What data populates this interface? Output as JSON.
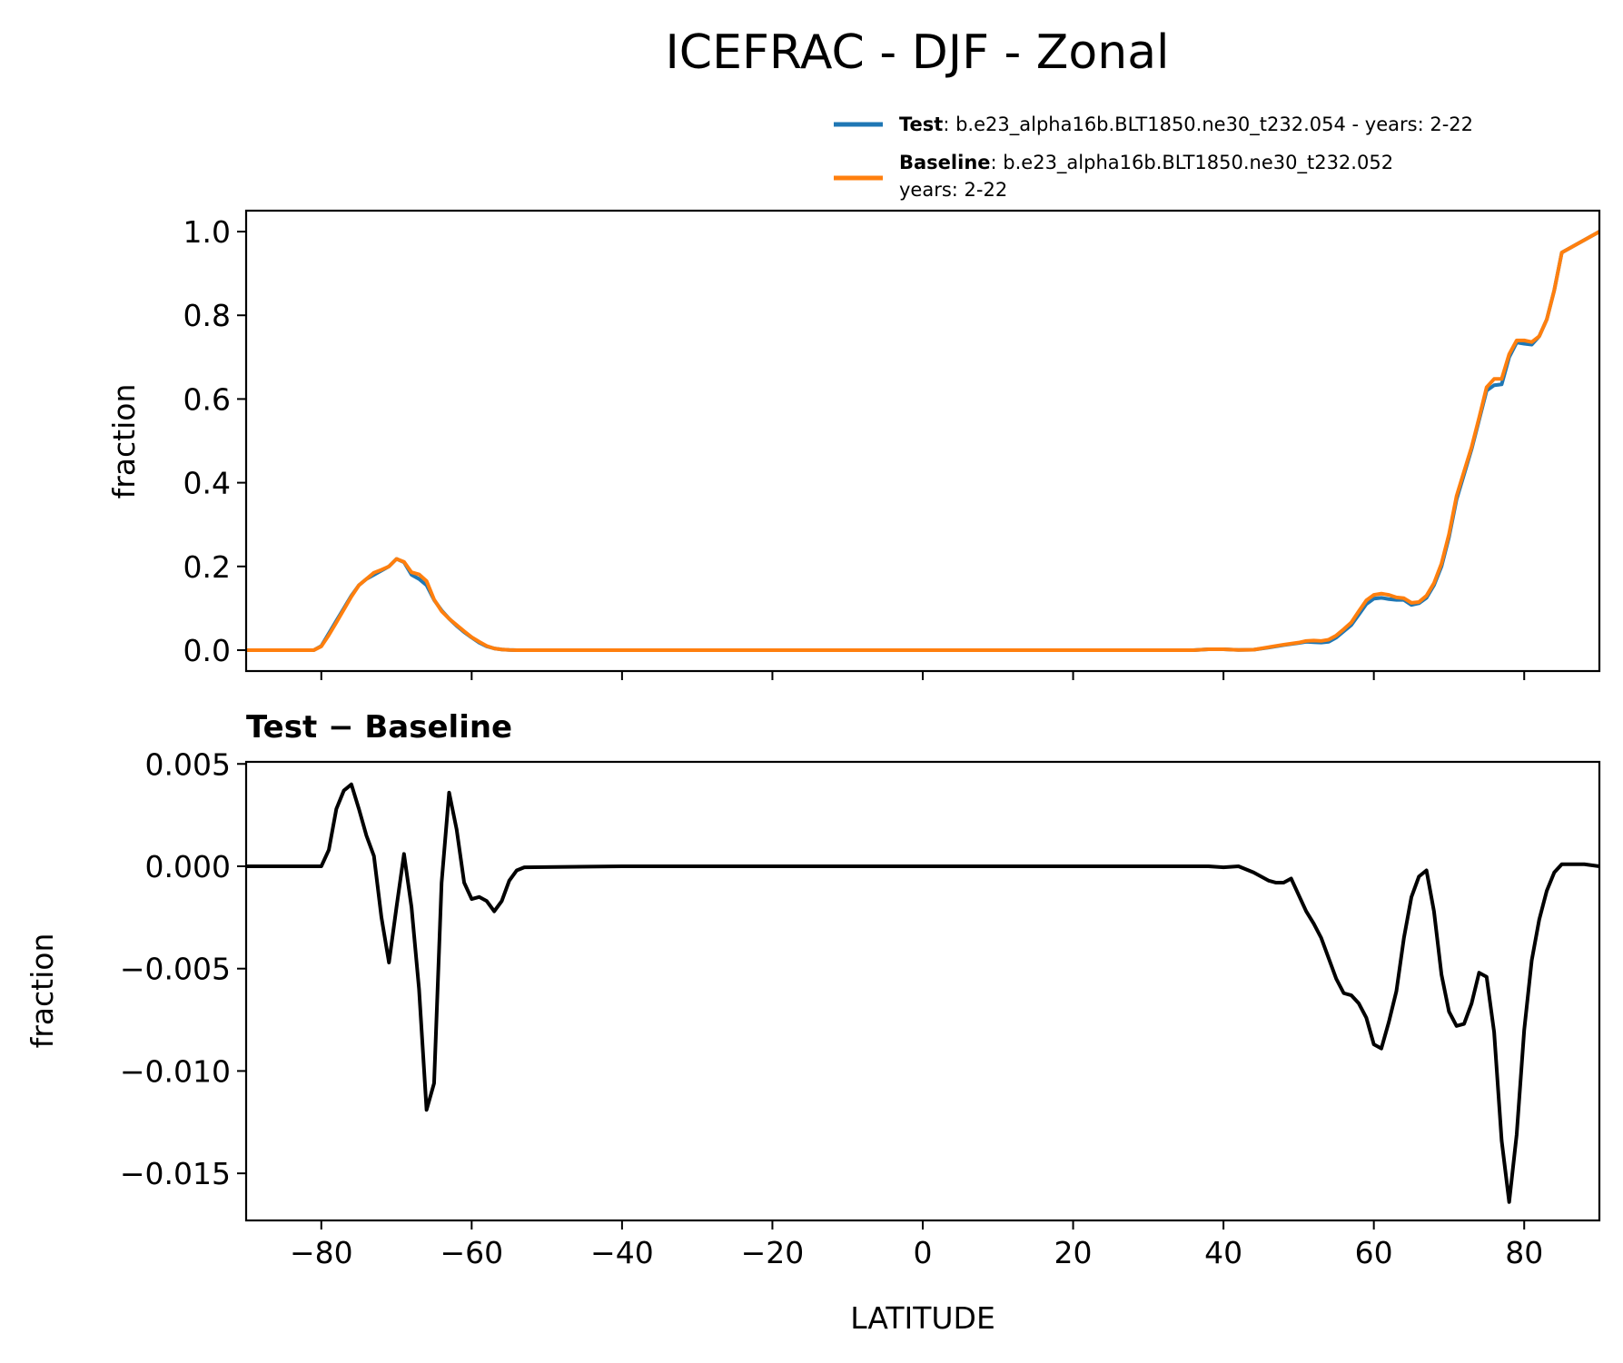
{
  "title": "ICEFRAC - DJF - Zonal",
  "legend": {
    "placement": "top-right",
    "entries": [
      {
        "name": "Test",
        "sep": ": ",
        "desc": "b.e23_alpha16b.BLT1850.ne30_t232.054 - years: 2-22",
        "desc2": "",
        "color": "#1f77b4"
      },
      {
        "name": "Baseline",
        "sep": ": ",
        "desc": "b.e23_alpha16b.BLT1850.ne30_t232.052",
        "desc2": "years: 2-22",
        "color": "#ff7f0e"
      }
    ]
  },
  "colors": {
    "test": "#1f77b4",
    "baseline": "#ff7f0e",
    "diff": "#000000"
  },
  "chart_data": [
    {
      "type": "line",
      "title": "",
      "xlabel": "",
      "ylabel": "fraction",
      "xlim": [
        -90,
        90
      ],
      "ylim": [
        -0.05,
        1.05
      ],
      "xticks": [
        -80,
        -60,
        -40,
        -20,
        0,
        20,
        40,
        60,
        80
      ],
      "yticks": [
        0.0,
        0.2,
        0.4,
        0.6,
        0.8,
        1.0
      ],
      "ytick_labels": [
        "0.0",
        "0.2",
        "0.4",
        "0.6",
        "0.8",
        "1.0"
      ],
      "grid": false,
      "series": [
        {
          "name": "Test",
          "color": "#1f77b4",
          "x": [
            -90,
            -81,
            -80,
            -79,
            -78,
            -77,
            -76,
            -75,
            -74,
            -73,
            -72,
            -71,
            -70,
            -69,
            -68,
            -67,
            -66,
            -65,
            -64,
            -63,
            -62,
            -61,
            -60,
            -59,
            -58,
            -57,
            -56,
            -55,
            -54,
            -53,
            -52,
            -40,
            -20,
            0,
            20,
            36,
            38,
            40,
            42,
            44,
            46,
            48,
            50,
            51,
            52,
            53,
            54,
            55,
            56,
            57,
            58,
            59,
            60,
            61,
            62,
            63,
            64,
            65,
            66,
            67,
            68,
            69,
            70,
            71,
            72,
            73,
            74,
            75,
            76,
            77,
            78,
            79,
            80,
            81,
            82,
            83,
            84,
            85,
            90
          ],
          "y": [
            0,
            0,
            0.01,
            0.04,
            0.07,
            0.1,
            0.13,
            0.155,
            0.17,
            0.18,
            0.19,
            0.2,
            0.218,
            0.21,
            0.18,
            0.17,
            0.155,
            0.12,
            0.095,
            0.075,
            0.058,
            0.043,
            0.03,
            0.018,
            0.009,
            0.004,
            0.0015,
            0.0005,
            0,
            0,
            0,
            0,
            0,
            0,
            0,
            0,
            0.002,
            0.002,
            0.0005,
            0.001,
            0.006,
            0.012,
            0.017,
            0.02,
            0.019,
            0.018,
            0.02,
            0.03,
            0.045,
            0.06,
            0.085,
            0.11,
            0.123,
            0.125,
            0.122,
            0.12,
            0.12,
            0.108,
            0.112,
            0.125,
            0.155,
            0.2,
            0.27,
            0.36,
            0.42,
            0.48,
            0.55,
            0.62,
            0.633,
            0.635,
            0.7,
            0.735,
            0.732,
            0.73,
            0.75,
            0.79,
            0.86,
            0.95,
            1.0
          ]
        },
        {
          "name": "Baseline",
          "color": "#ff7f0e",
          "x": [
            -90,
            -81,
            -80,
            -79,
            -78,
            -77,
            -76,
            -75,
            -74,
            -73,
            -72,
            -71,
            -70,
            -69,
            -68,
            -67,
            -66,
            -65,
            -64,
            -63,
            -62,
            -61,
            -60,
            -59,
            -58,
            -57,
            -56,
            -55,
            -54,
            -53,
            -52,
            -40,
            -20,
            0,
            20,
            36,
            38,
            40,
            42,
            44,
            46,
            48,
            50,
            51,
            52,
            53,
            54,
            55,
            56,
            57,
            58,
            59,
            60,
            61,
            62,
            63,
            64,
            65,
            66,
            67,
            68,
            69,
            70,
            71,
            72,
            73,
            74,
            75,
            76,
            77,
            78,
            79,
            80,
            81,
            82,
            83,
            84,
            85,
            90
          ],
          "y": [
            0,
            0,
            0.009,
            0.036,
            0.066,
            0.097,
            0.128,
            0.155,
            0.17,
            0.185,
            0.192,
            0.2,
            0.218,
            0.211,
            0.186,
            0.181,
            0.165,
            0.121,
            0.093,
            0.075,
            0.06,
            0.045,
            0.031,
            0.02,
            0.01,
            0.004,
            0.0015,
            0.0005,
            0,
            0,
            0,
            0,
            0,
            0,
            0,
            0,
            0.002,
            0.002,
            0.0005,
            0.001,
            0.007,
            0.013,
            0.018,
            0.022,
            0.023,
            0.022,
            0.025,
            0.035,
            0.05,
            0.066,
            0.093,
            0.119,
            0.132,
            0.135,
            0.132,
            0.126,
            0.124,
            0.113,
            0.115,
            0.13,
            0.16,
            0.207,
            0.277,
            0.368,
            0.427,
            0.485,
            0.555,
            0.628,
            0.648,
            0.648,
            0.707,
            0.74,
            0.74,
            0.736,
            0.75,
            0.79,
            0.86,
            0.95,
            1.0
          ]
        }
      ]
    },
    {
      "type": "line",
      "title": "Test − Baseline",
      "xlabel": "LATITUDE",
      "ylabel": "fraction",
      "xlim": [
        -90,
        90
      ],
      "ylim": [
        -0.0173,
        0.0051
      ],
      "xticks": [
        -80,
        -60,
        -40,
        -20,
        0,
        20,
        40,
        60,
        80
      ],
      "xtick_labels": [
        "−80",
        "−60",
        "−40",
        "−20",
        "0",
        "20",
        "40",
        "60",
        "80"
      ],
      "yticks": [
        0.005,
        0.0,
        -0.005,
        -0.01,
        -0.015
      ],
      "ytick_labels": [
        "0.005",
        "0.000",
        "−0.005",
        "−0.010",
        "−0.015"
      ],
      "grid": false,
      "series": [
        {
          "name": "",
          "color": "#000000",
          "x": [
            -90,
            -80,
            -79,
            -78,
            -77,
            -76,
            -75,
            -74,
            -73,
            -72,
            -71,
            -70,
            -69,
            -68,
            -67,
            -66,
            -65,
            -64,
            -63,
            -62,
            -61,
            -60,
            -59,
            -58,
            -57,
            -56,
            -55,
            -54,
            -53,
            -40,
            -20,
            0,
            20,
            38,
            40,
            42,
            44,
            45,
            46,
            47,
            48,
            49,
            50,
            51,
            52,
            53,
            54,
            55,
            56,
            57,
            58,
            59,
            60,
            61,
            62,
            63,
            64,
            65,
            66,
            67,
            68,
            69,
            70,
            71,
            72,
            73,
            74,
            75,
            76,
            77,
            78,
            79,
            80,
            81,
            82,
            83,
            84,
            85,
            86,
            88,
            90
          ],
          "y": [
            0,
            0,
            0.0008,
            0.0028,
            0.0037,
            0.004,
            0.0028,
            0.0015,
            0.0005,
            -0.0025,
            -0.0047,
            -0.002,
            0.0006,
            -0.002,
            -0.006,
            -0.0119,
            -0.0106,
            -0.0008,
            0.0036,
            0.0018,
            -0.0008,
            -0.0016,
            -0.0015,
            -0.0017,
            -0.0022,
            -0.0017,
            -0.0007,
            -0.0002,
            -5e-05,
            0,
            0,
            0,
            0,
            0,
            -5e-05,
            0,
            -0.0003,
            -0.0005,
            -0.0007,
            -0.0008,
            -0.0008,
            -0.0006,
            -0.0014,
            -0.0022,
            -0.0028,
            -0.0035,
            -0.0045,
            -0.0055,
            -0.0062,
            -0.0063,
            -0.0067,
            -0.0074,
            -0.0087,
            -0.0089,
            -0.0076,
            -0.0061,
            -0.0035,
            -0.0015,
            -0.0005,
            -0.0002,
            -0.0022,
            -0.0053,
            -0.0071,
            -0.0078,
            -0.0077,
            -0.0067,
            -0.0052,
            -0.0054,
            -0.0081,
            -0.0134,
            -0.0164,
            -0.0131,
            -0.008,
            -0.0046,
            -0.0026,
            -0.0012,
            -0.0003,
            0.0001,
            0.0001,
            0.0001,
            0
          ]
        }
      ]
    }
  ]
}
